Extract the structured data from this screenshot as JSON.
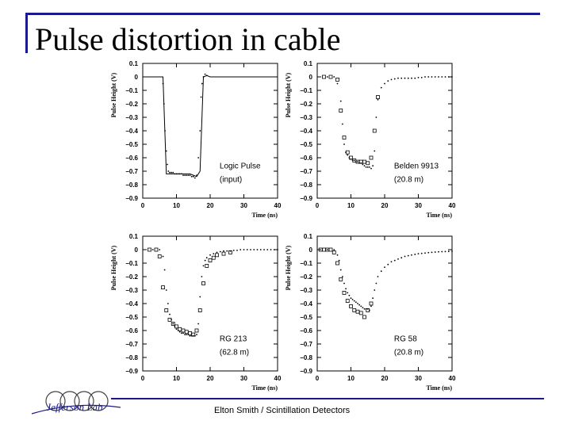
{
  "slide": {
    "title": "Pulse distortion in cable",
    "footer": "Elton Smith / Scintillation Detectors",
    "logo_text": "Jefferson Lab",
    "accent_color": "#1a1a8c"
  },
  "chart_data": [
    {
      "type": "scatter",
      "xlabel": "Time (ns)",
      "ylabel": "Pulse Height (V)",
      "xlim": [
        0,
        40
      ],
      "ylim": [
        -0.9,
        0.1
      ],
      "xticks": [
        0,
        10,
        20,
        30,
        40
      ],
      "yticks": [
        0.1,
        0,
        -0.1,
        -0.2,
        -0.3,
        -0.4,
        -0.5,
        -0.6,
        -0.7,
        -0.8,
        -0.9
      ],
      "ytick_labels": [
        "0.1",
        "0",
        "−0.1",
        "−0.2",
        "−0.3",
        "−0.4",
        "−0.5",
        "−0.6",
        "−0.7",
        "−0.8",
        "−0.9"
      ],
      "annotations": [
        "Logic Pulse",
        "(input)"
      ],
      "series": [
        {
          "marker": "line",
          "x": [
            0,
            1,
            2,
            3,
            4,
            5,
            6,
            7,
            8,
            9,
            10,
            11,
            12,
            13,
            14,
            15,
            16,
            17,
            18,
            19,
            20,
            22,
            25,
            28,
            30,
            32,
            35,
            38,
            40
          ],
          "y": [
            0,
            0,
            0,
            0,
            0,
            0,
            0,
            -0.72,
            -0.72,
            -0.72,
            -0.72,
            -0.72,
            -0.72,
            -0.72,
            -0.72,
            -0.73,
            -0.74,
            -0.7,
            0,
            0.01,
            0,
            0,
            0,
            0,
            0,
            0,
            0,
            0,
            0
          ]
        },
        {
          "marker": "dot",
          "x": [
            6,
            6.3,
            6.6,
            7,
            7.3,
            7.6,
            8,
            8.5,
            9,
            9.5,
            10,
            10.5,
            11,
            11.5,
            12,
            12.5,
            13,
            13.5,
            14,
            14.5,
            15,
            15.5,
            16,
            16.5,
            17,
            17.3,
            17.6,
            18,
            18.5,
            19
          ],
          "y": [
            -0.05,
            -0.2,
            -0.4,
            -0.55,
            -0.65,
            -0.7,
            -0.71,
            -0.71,
            -0.71,
            -0.72,
            -0.72,
            -0.72,
            -0.72,
            -0.72,
            -0.73,
            -0.73,
            -0.73,
            -0.73,
            -0.73,
            -0.74,
            -0.74,
            -0.75,
            -0.73,
            -0.6,
            -0.4,
            -0.15,
            -0.05,
            0,
            0.02,
            0.01
          ]
        }
      ]
    },
    {
      "type": "scatter",
      "xlabel": "Time (ns)",
      "ylabel": "Pulse Height (V)",
      "xlim": [
        0,
        40
      ],
      "ylim": [
        -0.9,
        0.1
      ],
      "xticks": [
        0,
        10,
        20,
        30,
        40
      ],
      "yticks": [
        0.1,
        0,
        -0.1,
        -0.2,
        -0.3,
        -0.4,
        -0.5,
        -0.6,
        -0.7,
        -0.8,
        -0.9
      ],
      "ytick_labels": [
        "0.1",
        "0",
        "−0.1",
        "−0.2",
        "−0.3",
        "−0.4",
        "−0.5",
        "−0.6",
        "−0.7",
        "−0.8",
        "−0.9"
      ],
      "annotations": [
        "Belden 9913",
        "(20.8 m)"
      ],
      "series": [
        {
          "marker": "square",
          "x": [
            2,
            4,
            6,
            7,
            8,
            9,
            10,
            11,
            12,
            13,
            14,
            15,
            16,
            17,
            18
          ],
          "y": [
            0,
            0,
            -0.02,
            -0.25,
            -0.45,
            -0.56,
            -0.6,
            -0.62,
            -0.63,
            -0.63,
            -0.63,
            -0.64,
            -0.6,
            -0.4,
            -0.15
          ]
        },
        {
          "marker": "dot",
          "x": [
            3,
            5,
            6,
            7,
            7.5,
            8,
            8.5,
            9,
            9.5,
            10,
            10.5,
            11,
            11.5,
            12,
            12.5,
            13,
            13.5,
            14,
            14.5,
            15,
            15.5,
            16,
            16.5,
            17,
            17.5,
            18,
            19,
            20,
            21,
            22,
            23,
            24,
            25,
            26,
            27,
            28,
            29,
            30,
            31,
            32,
            33,
            34,
            35,
            36,
            37,
            38,
            39,
            40
          ],
          "y": [
            0,
            0,
            -0.05,
            -0.18,
            -0.35,
            -0.5,
            -0.56,
            -0.58,
            -0.6,
            -0.61,
            -0.62,
            -0.62,
            -0.63,
            -0.63,
            -0.64,
            -0.64,
            -0.65,
            -0.66,
            -0.67,
            -0.67,
            -0.67,
            -0.68,
            -0.66,
            -0.55,
            -0.3,
            -0.17,
            -0.08,
            -0.05,
            -0.03,
            -0.02,
            -0.015,
            -0.01,
            -0.01,
            -0.01,
            -0.01,
            -0.01,
            -0.01,
            -0.005,
            -0.005,
            0,
            0,
            0,
            0,
            0,
            0,
            0,
            0,
            0
          ]
        }
      ]
    },
    {
      "type": "scatter",
      "xlabel": "Time (ns)",
      "ylabel": "Pulse Height (V)",
      "xlim": [
        0,
        40
      ],
      "ylim": [
        -0.9,
        0.1
      ],
      "xticks": [
        0,
        10,
        20,
        30,
        40
      ],
      "yticks": [
        0.1,
        0,
        -0.1,
        -0.2,
        -0.3,
        -0.4,
        -0.5,
        -0.6,
        -0.7,
        -0.8,
        -0.9
      ],
      "ytick_labels": [
        "0.1",
        "0",
        "−0.1",
        "−0.2",
        "−0.3",
        "−0.4",
        "−0.5",
        "−0.6",
        "−0.7",
        "−0.8",
        "−0.9"
      ],
      "annotations": [
        "RG 213",
        "(62.8 m)"
      ],
      "series": [
        {
          "marker": "square",
          "x": [
            2,
            4,
            5,
            6,
            7,
            8,
            9,
            10,
            11,
            12,
            13,
            14,
            15,
            16,
            17,
            18,
            19,
            20,
            21,
            22,
            24,
            26
          ],
          "y": [
            0,
            0,
            -0.05,
            -0.28,
            -0.45,
            -0.52,
            -0.55,
            -0.57,
            -0.59,
            -0.6,
            -0.61,
            -0.62,
            -0.63,
            -0.6,
            -0.45,
            -0.25,
            -0.12,
            -0.08,
            -0.06,
            -0.04,
            -0.03,
            -0.02
          ]
        },
        {
          "marker": "dot",
          "x": [
            3,
            5,
            6,
            6.5,
            7,
            7.5,
            8,
            8.5,
            9,
            9.5,
            10,
            10.5,
            11,
            11.5,
            12,
            12.5,
            13,
            13.5,
            14,
            14.5,
            15,
            15.5,
            16,
            16.5,
            17,
            17.5,
            18,
            18.5,
            19,
            20,
            21,
            22,
            23,
            24,
            25,
            26,
            27,
            28,
            29,
            30,
            31,
            32,
            33,
            34,
            35,
            36,
            37,
            38,
            39,
            40
          ],
          "y": [
            0,
            0,
            -0.05,
            -0.15,
            -0.3,
            -0.4,
            -0.48,
            -0.52,
            -0.55,
            -0.57,
            -0.59,
            -0.6,
            -0.61,
            -0.62,
            -0.62,
            -0.63,
            -0.63,
            -0.63,
            -0.64,
            -0.64,
            -0.64,
            -0.64,
            -0.63,
            -0.55,
            -0.35,
            -0.2,
            -0.12,
            -0.08,
            -0.06,
            -0.04,
            -0.03,
            -0.02,
            -0.015,
            -0.01,
            -0.01,
            -0.01,
            -0.005,
            -0.005,
            0,
            0,
            0,
            0,
            0,
            0,
            0,
            0,
            0,
            0,
            0,
            0
          ]
        }
      ]
    },
    {
      "type": "scatter",
      "xlabel": "Time (ns)",
      "ylabel": "Pulse Height (V)",
      "xlim": [
        0,
        40
      ],
      "ylim": [
        -0.9,
        0.1
      ],
      "xticks": [
        0,
        10,
        20,
        30,
        40
      ],
      "yticks": [
        0.1,
        0,
        -0.1,
        -0.2,
        -0.3,
        -0.4,
        -0.5,
        -0.6,
        -0.7,
        -0.8,
        -0.9
      ],
      "ytick_labels": [
        "0.1",
        "0",
        "−0.1",
        "−0.2",
        "−0.3",
        "−0.4",
        "−0.5",
        "−0.6",
        "−0.7",
        "−0.8",
        "−0.9"
      ],
      "annotations": [
        "RG 58",
        "(20.8 m)"
      ],
      "series": [
        {
          "marker": "square",
          "x": [
            1,
            2,
            3,
            4,
            5,
            6,
            7,
            8,
            9,
            10,
            11,
            12,
            13,
            14,
            15,
            16
          ],
          "y": [
            0,
            0,
            0,
            0,
            -0.02,
            -0.1,
            -0.22,
            -0.32,
            -0.38,
            -0.42,
            -0.45,
            -0.46,
            -0.47,
            -0.5,
            -0.45,
            -0.4
          ]
        },
        {
          "marker": "dot",
          "x": [
            3,
            5,
            6,
            6.5,
            7,
            7.5,
            8,
            8.5,
            9,
            9.5,
            10,
            10.5,
            11,
            11.5,
            12,
            12.5,
            13,
            13.5,
            14,
            14.5,
            15,
            15.5,
            16,
            16.5,
            17,
            17.5,
            18,
            19,
            20,
            21,
            22,
            23,
            24,
            25,
            26,
            27,
            28,
            29,
            30,
            31,
            32,
            33,
            34,
            35,
            36,
            37,
            38,
            39,
            40
          ],
          "y": [
            0,
            0,
            -0.04,
            -0.08,
            -0.15,
            -0.2,
            -0.25,
            -0.29,
            -0.32,
            -0.34,
            -0.36,
            -0.37,
            -0.38,
            -0.39,
            -0.4,
            -0.41,
            -0.42,
            -0.43,
            -0.44,
            -0.44,
            -0.44,
            -0.45,
            -0.42,
            -0.36,
            -0.3,
            -0.25,
            -0.2,
            -0.16,
            -0.13,
            -0.11,
            -0.09,
            -0.08,
            -0.07,
            -0.06,
            -0.05,
            -0.045,
            -0.04,
            -0.035,
            -0.03,
            -0.028,
            -0.025,
            -0.022,
            -0.02,
            -0.018,
            -0.016,
            -0.015,
            -0.014,
            -0.013,
            -0.012
          ]
        }
      ]
    }
  ]
}
